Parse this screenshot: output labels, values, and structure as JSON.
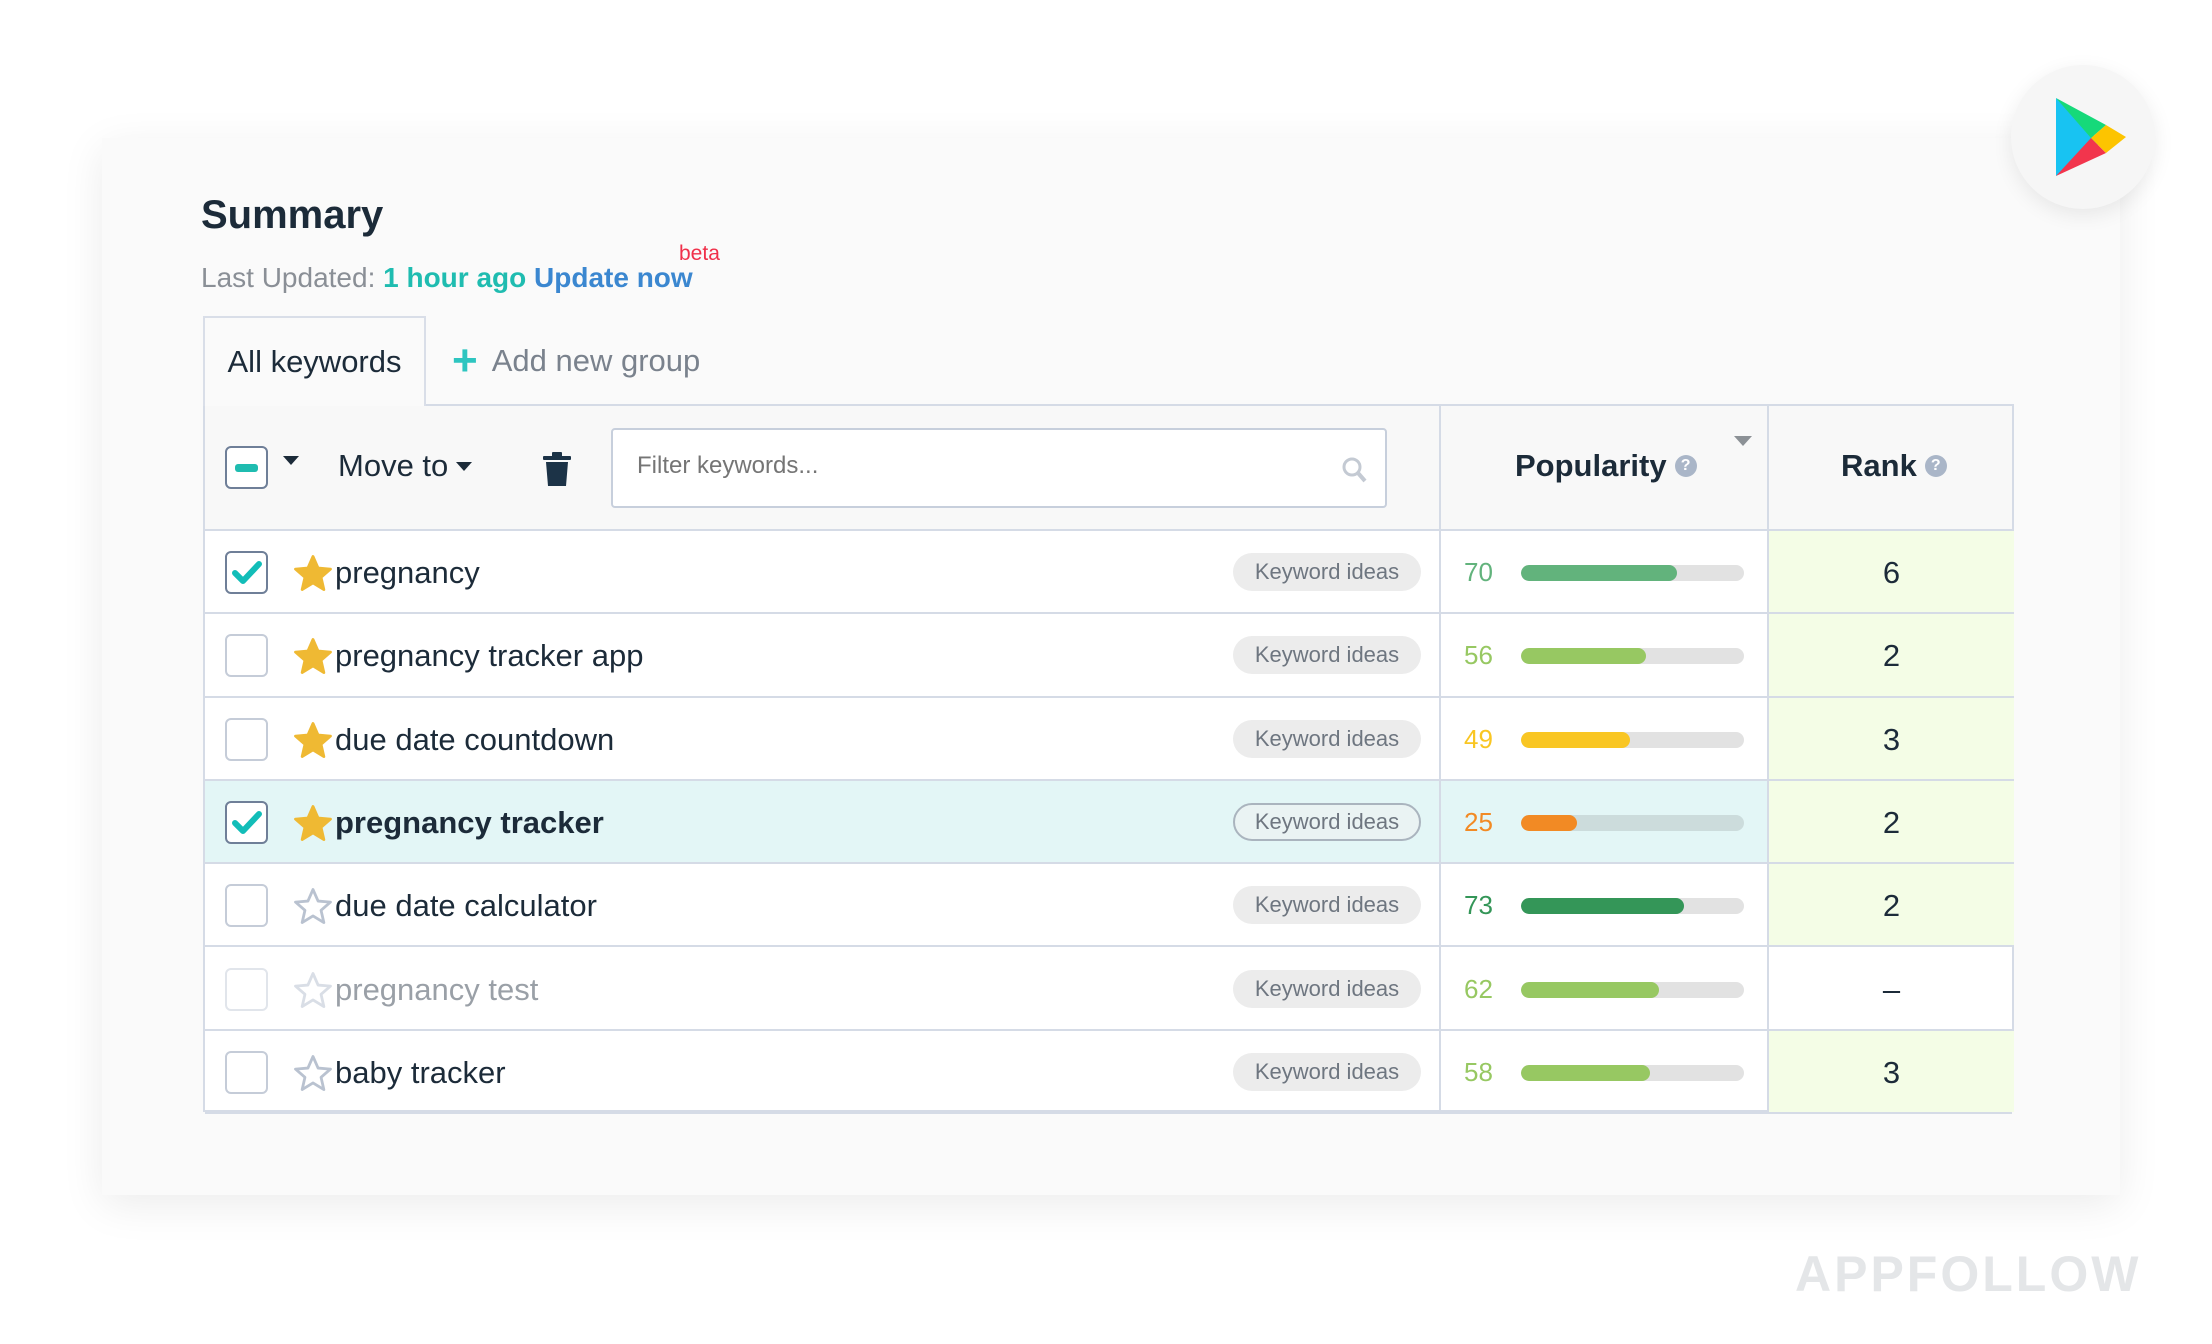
{
  "header": {
    "title": "Summary",
    "last_updated_label": "Last Updated:",
    "last_updated_value": "1 hour ago",
    "update_now": "Update now",
    "beta": "beta"
  },
  "tabs": {
    "all_keywords": "All keywords",
    "add_group": "Add new group"
  },
  "toolbar": {
    "move_to": "Move to",
    "filter_placeholder": "Filter keywords..."
  },
  "columns": {
    "popularity": "Popularity",
    "rank": "Rank"
  },
  "keyword_ideas_label": "Keyword ideas",
  "rows": [
    {
      "keyword": "pregnancy",
      "checked": true,
      "starred": true,
      "popularity": "70",
      "rank": "6",
      "color": "#62b37c"
    },
    {
      "keyword": "pregnancy tracker app",
      "checked": false,
      "starred": true,
      "popularity": "56",
      "rank": "2",
      "color": "#97c862"
    },
    {
      "keyword": "due date countdown",
      "checked": false,
      "starred": true,
      "popularity": "49",
      "rank": "3",
      "color": "#f9c623"
    },
    {
      "keyword": "pregnancy tracker",
      "checked": true,
      "starred": true,
      "popularity": "25",
      "rank": "2",
      "color": "#f28a24"
    },
    {
      "keyword": "due date calculator",
      "checked": false,
      "starred": false,
      "popularity": "73",
      "rank": "2",
      "color": "#349658"
    },
    {
      "keyword": "pregnancy test",
      "checked": false,
      "starred": false,
      "popularity": "62",
      "rank": "–",
      "color": "#97c862"
    },
    {
      "keyword": "baby tracker",
      "checked": false,
      "starred": false,
      "popularity": "58",
      "rank": "3",
      "color": "#97c862"
    }
  ],
  "watermark": "APPFOLLOW",
  "icons": {
    "store": "google-play-icon",
    "delete": "trash-icon",
    "search": "search-icon",
    "help": "question-circle-icon"
  }
}
